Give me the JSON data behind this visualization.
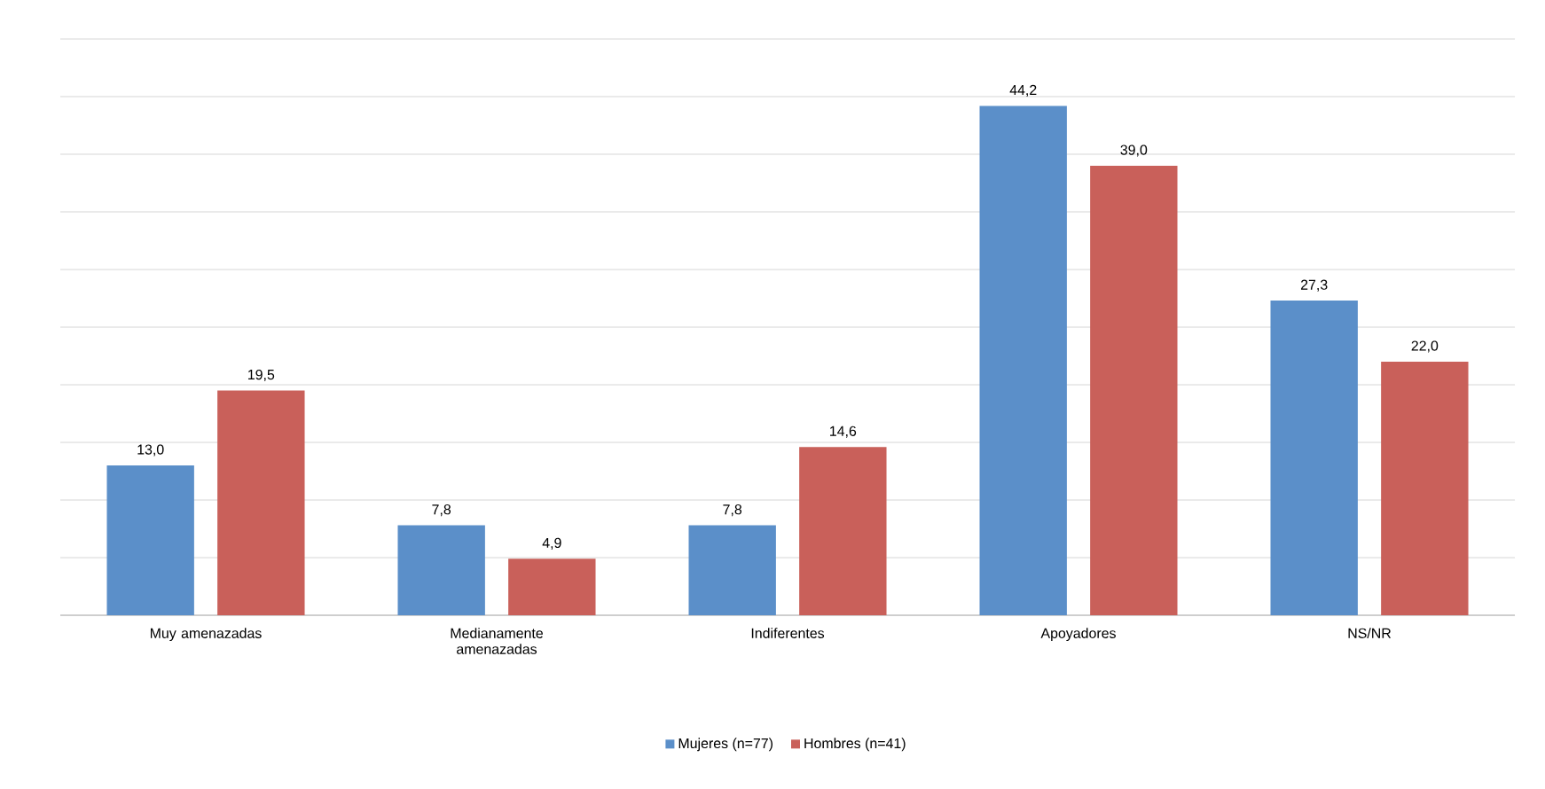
{
  "chart_data": {
    "type": "bar",
    "categories": [
      "Muy amenazadas",
      "Medianamente amenazadas",
      "Indiferentes",
      "Apoyadores",
      "NS/NR"
    ],
    "series": [
      {
        "name": "Mujeres (n=77)",
        "color": "#5b8fc9",
        "values": [
          13.0,
          7.8,
          7.8,
          44.2,
          27.3
        ],
        "value_labels": [
          "13,0",
          "7,8",
          "7,8",
          "44,2",
          "27,3"
        ]
      },
      {
        "name": "Hombres (n=41)",
        "color": "#c9605a",
        "values": [
          19.5,
          4.9,
          14.6,
          39.0,
          22.0
        ],
        "value_labels": [
          "19,5",
          "4,9",
          "14,6",
          "39,0",
          "22,0"
        ]
      }
    ],
    "ylim": [
      0,
      50
    ],
    "yticks": [
      {
        "value": 0,
        "label": null
      },
      {
        "value": 5,
        "label": null
      },
      {
        "value": 10,
        "label": null
      },
      {
        "value": 15,
        "label": null
      },
      {
        "value": 20,
        "label": null
      },
      {
        "value": 25,
        "label": null
      },
      {
        "value": 30,
        "label": null
      },
      {
        "value": 35,
        "label": null
      },
      {
        "value": 40,
        "label": null
      },
      {
        "value": 45,
        "label": null
      },
      {
        "value": 50,
        "label": null
      }
    ],
    "grid": "y",
    "legend": "bottom",
    "tick_labels": "x"
  }
}
